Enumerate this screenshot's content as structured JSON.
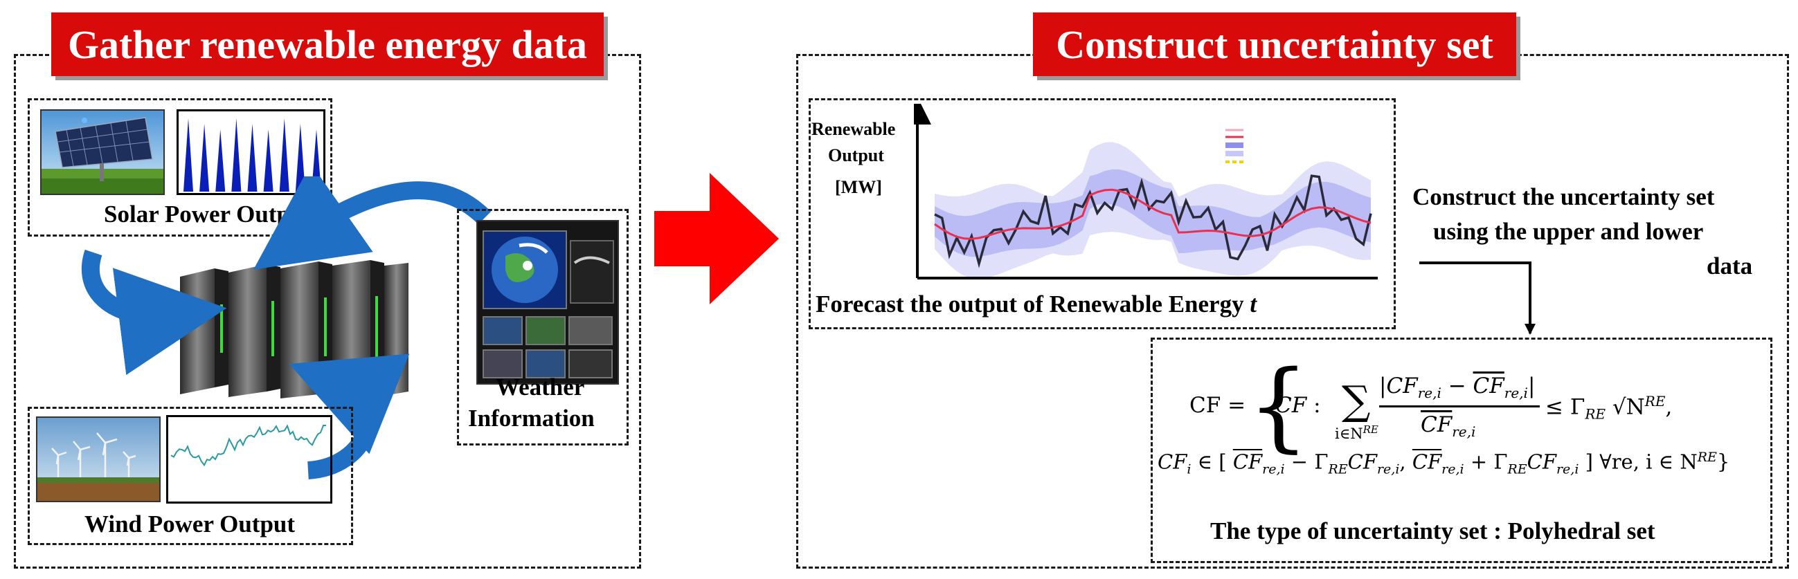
{
  "left_panel": {
    "banner": "Gather renewable energy data",
    "solar_label": "Solar Power Output",
    "wind_label": "Wind Power Output",
    "weather_label_line1": "Weather",
    "weather_label_line2": "Information"
  },
  "right_panel": {
    "banner": "Construct uncertainty set",
    "chart": {
      "ylabel_line1": "Renewable",
      "ylabel_line2": "Output",
      "ylabel_line3": "[MW]",
      "caption": "Forecast the output of Renewable Energy",
      "caption_var": "t"
    },
    "step_text_line1": "Construct the uncertainty set",
    "step_text_line2": "using the upper and lower",
    "step_text_line3": "data",
    "formula": {
      "lhs": "CF =",
      "set_var": "CF",
      "colon": ":",
      "sum_sub": "i∈N",
      "sum_sup": "RE",
      "numerator": "|CF",
      "numerator_sub": "re,i",
      "minus": "−",
      "numerator2": "CF",
      "numerator2_sub": "re,i",
      "bar": "|",
      "denominator": "CF",
      "denominator_sub": "re,i",
      "leq": "≤ Γ",
      "gamma_sub": "RE",
      "sqrt": "√N",
      "sqrt_sup": "RE",
      "comma": ",",
      "line2_lhs": "CF",
      "line2_sub": "i",
      "line2_in": "∈ [",
      "line2_a": "CF",
      "line2_a_sub": "re,i",
      "line2_minus": " − Γ",
      "line2_g1_sub": "RE",
      "line2_b": "CF",
      "line2_b_sub": "re,i",
      "line2_comma": ",",
      "line2_c": "CF",
      "line2_c_sub": "re,i",
      "line2_plus": " + Γ",
      "line2_g2_sub": "RE",
      "line2_d": "CF",
      "line2_d_sub": "re,i",
      "line2_close": "]",
      "line2_forall": "∀re, i ∈ N",
      "line2_forall_sup": "RE",
      "line2_brace": "}"
    },
    "set_type": "The type of uncertainty set : Polyhedral set"
  },
  "colors": {
    "banner_red": "#d80a0a",
    "arrow_red": "#ff0000",
    "cycle_arrow_blue": "#1f6fc4",
    "solar_bar_blue": "#0a1fb8",
    "wind_line_teal": "#2a9aa0",
    "forecast_band": "#8f8ff0",
    "actual_line": "#2a2a3a",
    "forecast_line": "#e83050"
  }
}
